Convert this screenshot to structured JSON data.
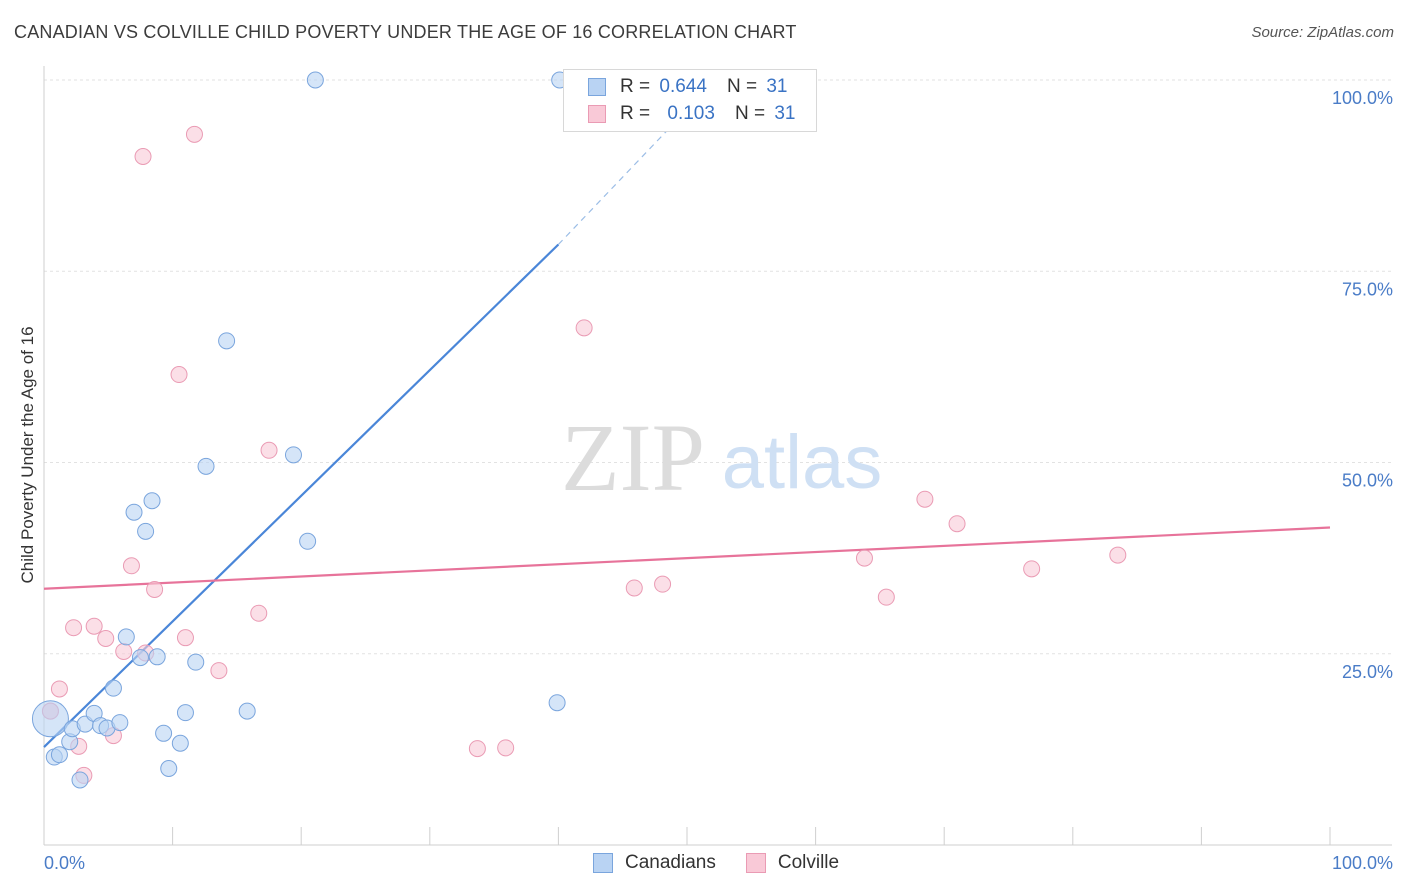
{
  "header": {
    "title": "CANADIAN VS COLVILLE CHILD POVERTY UNDER THE AGE OF 16 CORRELATION CHART",
    "source": "Source: ZipAtlas.com"
  },
  "watermark": {
    "zip": "ZIP",
    "atlas": "atlas"
  },
  "legend": {
    "r_label": "R =",
    "n_label": "N =",
    "rows": [
      {
        "name": "Canadians",
        "r": "0.644",
        "n": "31",
        "fill": "#b9d3f3",
        "stroke": "#7aa5dd"
      },
      {
        "name": "Colville",
        "r": "0.103",
        "n": "31",
        "fill": "#f9c9d7",
        "stroke": "#ea9bb4"
      }
    ]
  },
  "chart_data": {
    "type": "scatter",
    "title": "CANADIAN VS COLVILLE CHILD POVERTY UNDER THE AGE OF 16 CORRELATION CHART",
    "xlabel": "",
    "ylabel": "Child Poverty Under the Age of 16",
    "xlim": [
      0,
      100
    ],
    "ylim": [
      0,
      100
    ],
    "x_tick_labels": [
      "0.0%",
      "100.0%"
    ],
    "y_ticks": [
      {
        "value": 25,
        "label": "25.0%"
      },
      {
        "value": 50,
        "label": "50.0%"
      },
      {
        "value": 75,
        "label": "75.0%"
      },
      {
        "value": 100,
        "label": "100.0%"
      }
    ],
    "series": [
      {
        "name": "Canadians",
        "color": "#4a86d8",
        "fill": "#b9d3f3",
        "points": [
          [
            0.5,
            16.5
          ],
          [
            0.8,
            11.5
          ],
          [
            1.2,
            11.8
          ],
          [
            2.0,
            13.5
          ],
          [
            2.2,
            15.2
          ],
          [
            2.8,
            8.5
          ],
          [
            3.2,
            15.8
          ],
          [
            3.9,
            17.2
          ],
          [
            4.4,
            15.6
          ],
          [
            4.9,
            15.3
          ],
          [
            5.4,
            20.5
          ],
          [
            5.9,
            16.0
          ],
          [
            6.4,
            27.2
          ],
          [
            7.0,
            43.5
          ],
          [
            7.5,
            24.5
          ],
          [
            7.9,
            41.0
          ],
          [
            8.4,
            45.0
          ],
          [
            8.8,
            24.6
          ],
          [
            9.3,
            14.6
          ],
          [
            9.7,
            10.0
          ],
          [
            10.6,
            13.3
          ],
          [
            11.0,
            17.3
          ],
          [
            11.8,
            23.9
          ],
          [
            12.6,
            49.5
          ],
          [
            14.2,
            65.9
          ],
          [
            15.8,
            17.5
          ],
          [
            19.4,
            51.0
          ],
          [
            20.5,
            39.7
          ],
          [
            21.1,
            100.0
          ],
          [
            39.9,
            18.6
          ],
          [
            40.1,
            100.0
          ]
        ],
        "trend": {
          "x": [
            0.0,
            40.0
          ],
          "y": [
            12.8,
            78.5
          ],
          "dashed_to": [
            52.2,
            100.0
          ]
        }
      },
      {
        "name": "Colville",
        "color": "#e7739a",
        "fill": "#f9c9d7",
        "points": [
          [
            0.5,
            17.5
          ],
          [
            1.2,
            20.4
          ],
          [
            2.3,
            28.4
          ],
          [
            2.7,
            12.9
          ],
          [
            3.1,
            9.1
          ],
          [
            3.9,
            28.6
          ],
          [
            4.8,
            27.0
          ],
          [
            5.4,
            14.3
          ],
          [
            6.2,
            25.3
          ],
          [
            6.8,
            36.5
          ],
          [
            7.7,
            90.0
          ],
          [
            7.9,
            25.1
          ],
          [
            8.6,
            33.4
          ],
          [
            10.5,
            61.5
          ],
          [
            11.0,
            27.1
          ],
          [
            11.7,
            92.9
          ],
          [
            13.6,
            22.8
          ],
          [
            16.7,
            30.3
          ],
          [
            17.5,
            51.6
          ],
          [
            33.7,
            12.6
          ],
          [
            35.9,
            12.7
          ],
          [
            42.0,
            67.6
          ],
          [
            45.9,
            33.6
          ],
          [
            48.1,
            34.1
          ],
          [
            63.8,
            37.5
          ],
          [
            65.5,
            32.4
          ],
          [
            68.5,
            45.2
          ],
          [
            71.0,
            42.0
          ],
          [
            76.8,
            36.1
          ],
          [
            83.5,
            37.9
          ],
          [
            0.5,
            17.5
          ]
        ],
        "trend": {
          "x": [
            0.0,
            100.0
          ],
          "y": [
            33.5,
            41.5
          ]
        }
      }
    ]
  }
}
